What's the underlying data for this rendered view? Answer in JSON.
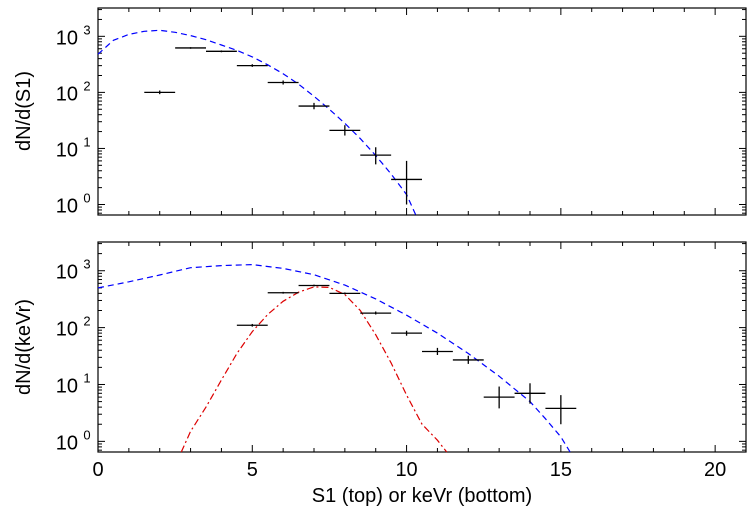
{
  "chart_data": {
    "type": "scatter",
    "xlabel": "S1 (top) or keVr (bottom)",
    "xlim": [
      0,
      21
    ],
    "x_ticks": [
      0,
      5,
      10,
      15,
      20
    ],
    "y_scale": "log",
    "y_ticks": [
      1,
      10,
      100,
      1000
    ],
    "grid": false,
    "panels": [
      {
        "id": "top",
        "ylabel": "dN/d(S1)",
        "ylim": [
          0.65,
          3200
        ],
        "series": [
          {
            "style": "errorbar",
            "color": "#000000",
            "points": [
              {
                "x": 2,
                "y": 100,
                "xerr": 0.5,
                "ylo": 93,
                "yhi": 108
              },
              {
                "x": 3,
                "y": 620,
                "xerr": 0.5,
                "ylo": 600,
                "yhi": 640
              },
              {
                "x": 4,
                "y": 540,
                "xerr": 0.5,
                "ylo": 520,
                "yhi": 560
              },
              {
                "x": 5,
                "y": 300,
                "xerr": 0.5,
                "ylo": 285,
                "yhi": 318
              },
              {
                "x": 6,
                "y": 150,
                "xerr": 0.5,
                "ylo": 138,
                "yhi": 163
              },
              {
                "x": 7,
                "y": 57,
                "xerr": 0.5,
                "ylo": 50,
                "yhi": 65
              },
              {
                "x": 8,
                "y": 21,
                "xerr": 0.5,
                "ylo": 17,
                "yhi": 26
              },
              {
                "x": 9,
                "y": 7.6,
                "xerr": 0.5,
                "ylo": 5.2,
                "yhi": 10.5
              },
              {
                "x": 10,
                "y": 2.8,
                "xerr": 0.5,
                "ylo": 1.0,
                "yhi": 6.0
              }
            ]
          },
          {
            "style": "dashed",
            "color": "#0000ff",
            "points": [
              [
                0,
                480
              ],
              [
                0.5,
                850
              ],
              [
                1,
                1080
              ],
              [
                1.5,
                1230
              ],
              [
                2,
                1280
              ],
              [
                2.5,
                1180
              ],
              [
                3,
                1030
              ],
              [
                3.5,
                870
              ],
              [
                4,
                700
              ],
              [
                4.5,
                560
              ],
              [
                5,
                430
              ],
              [
                5.5,
                310
              ],
              [
                6,
                215
              ],
              [
                6.5,
                140
              ],
              [
                7,
                85
              ],
              [
                7.5,
                50
              ],
              [
                8,
                28
              ],
              [
                8.5,
                15
              ],
              [
                9,
                7.5
              ],
              [
                9.5,
                3.5
              ],
              [
                10,
                1.5
              ],
              [
                10.3,
                0.65
              ]
            ]
          }
        ]
      },
      {
        "id": "bottom",
        "ylabel": "dN/d(keVr)",
        "ylim": [
          0.65,
          3200
        ],
        "series": [
          {
            "style": "errorbar",
            "color": "#000000",
            "points": [
              {
                "x": 5,
                "y": 110,
                "xerr": 0.5,
                "ylo": 104,
                "yhi": 116
              },
              {
                "x": 6,
                "y": 410,
                "xerr": 0.5,
                "ylo": 395,
                "yhi": 425
              },
              {
                "x": 7,
                "y": 550,
                "xerr": 0.5,
                "ylo": 530,
                "yhi": 570
              },
              {
                "x": 8,
                "y": 400,
                "xerr": 0.5,
                "ylo": 385,
                "yhi": 415
              },
              {
                "x": 9,
                "y": 180,
                "xerr": 0.5,
                "ylo": 170,
                "yhi": 192
              },
              {
                "x": 10,
                "y": 80,
                "xerr": 0.5,
                "ylo": 72,
                "yhi": 88
              },
              {
                "x": 11,
                "y": 38,
                "xerr": 0.5,
                "ylo": 33,
                "yhi": 44
              },
              {
                "x": 12,
                "y": 27,
                "xerr": 0.5,
                "ylo": 23,
                "yhi": 32
              },
              {
                "x": 13,
                "y": 6,
                "xerr": 0.5,
                "ylo": 3.8,
                "yhi": 9.2
              },
              {
                "x": 14,
                "y": 7,
                "xerr": 0.5,
                "ylo": 4.6,
                "yhi": 10.5
              },
              {
                "x": 15,
                "y": 3.8,
                "xerr": 0.5,
                "ylo": 2.0,
                "yhi": 6.5
              }
            ]
          },
          {
            "style": "dashed",
            "color": "#0000ff",
            "points": [
              [
                0,
                500
              ],
              [
                1,
                640
              ],
              [
                2,
                840
              ],
              [
                3,
                1130
              ],
              [
                4,
                1230
              ],
              [
                5,
                1280
              ],
              [
                6,
                1100
              ],
              [
                7,
                850
              ],
              [
                8,
                560
              ],
              [
                9,
                320
              ],
              [
                10,
                165
              ],
              [
                11,
                80
              ],
              [
                12,
                35
              ],
              [
                13,
                14
              ],
              [
                14,
                5
              ],
              [
                14.5,
                2.5
              ],
              [
                15,
                1.2
              ],
              [
                15.3,
                0.65
              ]
            ]
          },
          {
            "style": "dashdot",
            "color": "#dd0000",
            "points": [
              [
                2.7,
                0.65
              ],
              [
                3,
                1.5
              ],
              [
                3.5,
                4
              ],
              [
                4,
                12
              ],
              [
                4.5,
                35
              ],
              [
                5,
                85
              ],
              [
                5.5,
                170
              ],
              [
                6,
                290
              ],
              [
                6.5,
                420
              ],
              [
                7,
                520
              ],
              [
                7.5,
                510
              ],
              [
                8,
                380
              ],
              [
                8.5,
                200
              ],
              [
                9,
                75
              ],
              [
                9.5,
                24
              ],
              [
                10,
                6.5
              ],
              [
                10.5,
                2
              ],
              [
                11,
                1.05
              ],
              [
                11.3,
                0.65
              ]
            ]
          }
        ]
      }
    ]
  }
}
